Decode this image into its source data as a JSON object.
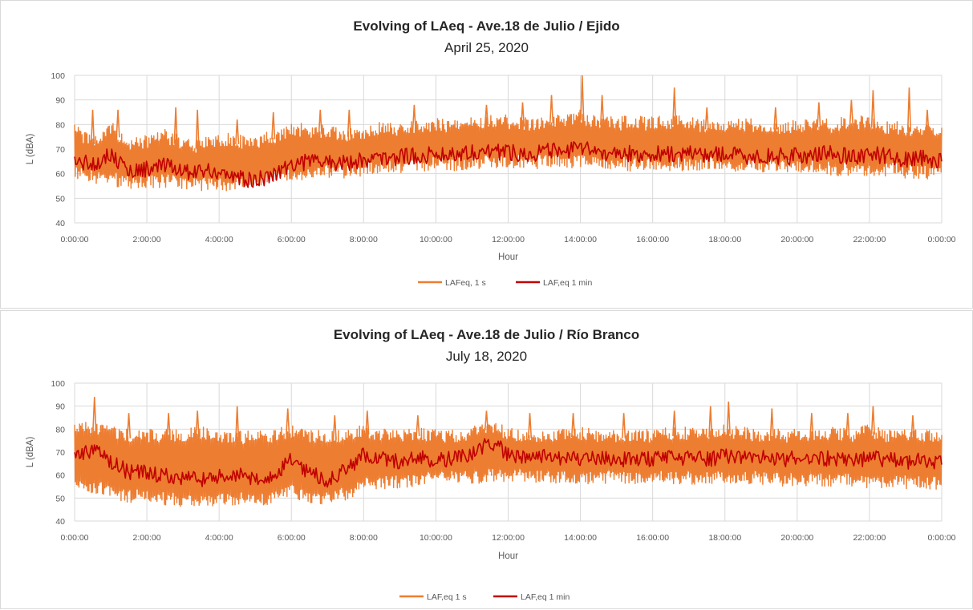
{
  "chart_data": [
    {
      "type": "line",
      "title": "Evolving of LAeq - Ave.18 de Julio / Ejido",
      "subtitle": "April 25, 2020",
      "xlabel": "Hour",
      "ylabel": "L (dBA)",
      "ylim": [
        40,
        100
      ],
      "yticks": [
        40,
        50,
        60,
        70,
        80,
        90,
        100
      ],
      "xticks": [
        "0:00:00",
        "2:00:00",
        "4:00:00",
        "6:00:00",
        "8:00:00",
        "10:00:00",
        "12:00:00",
        "14:00:00",
        "16:00:00",
        "18:00:00",
        "20:00:00",
        "22:00:00",
        "0:00:00"
      ],
      "grid": true,
      "legend_position": "bottom",
      "series": [
        {
          "name": "LAFeq, 1 s",
          "color": "#ED7D31",
          "hours": [
            0,
            0.5,
            1,
            1.5,
            2,
            2.5,
            3,
            3.5,
            4,
            4.5,
            5,
            5.5,
            6,
            6.5,
            7,
            7.5,
            8,
            8.5,
            9,
            9.5,
            10,
            10.5,
            11,
            11.5,
            12,
            12.5,
            13,
            13.5,
            14,
            14.5,
            15,
            15.5,
            16,
            16.5,
            17,
            17.5,
            18,
            18.5,
            19,
            19.5,
            20,
            20.5,
            21,
            21.5,
            22,
            22.5,
            23,
            23.5,
            24
          ],
          "upper": [
            80,
            76,
            82,
            74,
            76,
            78,
            75,
            74,
            77,
            76,
            75,
            78,
            81,
            80,
            80,
            79,
            79,
            82,
            81,
            82,
            83,
            82,
            83,
            84,
            84,
            83,
            84,
            85,
            86,
            84,
            83,
            84,
            83,
            84,
            83,
            82,
            82,
            83,
            82,
            82,
            82,
            83,
            82,
            84,
            83,
            82,
            81,
            81,
            80
          ],
          "lower": [
            57,
            56,
            55,
            54,
            54,
            54,
            53,
            53,
            53,
            53,
            54,
            56,
            57,
            57,
            58,
            58,
            59,
            60,
            60,
            61,
            61,
            61,
            62,
            62,
            62,
            62,
            62,
            62,
            62,
            62,
            61,
            61,
            61,
            61,
            61,
            61,
            61,
            60,
            60,
            60,
            60,
            60,
            59,
            59,
            59,
            59,
            58,
            58,
            57
          ],
          "spikes": [
            [
              0.5,
              86
            ],
            [
              1.2,
              86
            ],
            [
              2.8,
              87
            ],
            [
              3.4,
              86
            ],
            [
              4.5,
              82
            ],
            [
              5.5,
              85
            ],
            [
              6.8,
              86
            ],
            [
              7.6,
              86
            ],
            [
              9.4,
              88
            ],
            [
              11.4,
              88
            ],
            [
              12.4,
              89
            ],
            [
              13.2,
              92
            ],
            [
              14.05,
              100
            ],
            [
              14.6,
              92
            ],
            [
              16.6,
              95
            ],
            [
              17.5,
              87
            ],
            [
              19.4,
              87
            ],
            [
              20.6,
              89
            ],
            [
              21.5,
              90
            ],
            [
              22.1,
              94
            ],
            [
              23.1,
              95
            ],
            [
              23.6,
              86
            ]
          ]
        },
        {
          "name": "LAF,eq 1 min",
          "color": "#C00000",
          "hours": [
            0,
            0.5,
            1,
            1.5,
            2,
            2.5,
            3,
            3.5,
            4,
            4.5,
            5,
            5.5,
            6,
            6.5,
            7,
            7.5,
            8,
            8.5,
            9,
            9.5,
            10,
            10.5,
            11,
            11.5,
            12,
            12.5,
            13,
            13.5,
            14,
            14.5,
            15,
            15.5,
            16,
            16.5,
            17,
            17.5,
            18,
            18.5,
            19,
            19.5,
            20,
            20.5,
            21,
            21.5,
            22,
            22.5,
            23,
            23.5,
            24
          ],
          "values": [
            65,
            64,
            68,
            61,
            62,
            63,
            61,
            61,
            61,
            58,
            57,
            60,
            64,
            65,
            65,
            64,
            66,
            66,
            67,
            67,
            68,
            68,
            69,
            69,
            69,
            68,
            69,
            69,
            70,
            69,
            68,
            68,
            68,
            68,
            68,
            68,
            68,
            67,
            67,
            67,
            67,
            68,
            68,
            67,
            68,
            67,
            66,
            66,
            65
          ]
        }
      ]
    },
    {
      "type": "line",
      "title": "Evolving of LAeq - Ave.18 de Julio / Río Branco",
      "subtitle": "July 18, 2020",
      "xlabel": "Hour",
      "ylabel": "L (dBA)",
      "ylim": [
        40,
        100
      ],
      "yticks": [
        40,
        50,
        60,
        70,
        80,
        90,
        100
      ],
      "xticks": [
        "0:00:00",
        "2:00:00",
        "4:00:00",
        "6:00:00",
        "8:00:00",
        "10:00:00",
        "12:00:00",
        "14:00:00",
        "16:00:00",
        "18:00:00",
        "20:00:00",
        "22:00:00",
        "0:00:00"
      ],
      "grid": true,
      "legend_position": "bottom",
      "series": [
        {
          "name": "LAF,eq 1 s",
          "color": "#ED7D31",
          "hours": [
            0,
            0.5,
            1,
            1.5,
            2,
            2.5,
            3,
            3.5,
            4,
            4.5,
            5,
            5.5,
            6,
            6.5,
            7,
            7.5,
            8,
            8.5,
            9,
            9.5,
            10,
            10.5,
            11,
            11.5,
            12,
            12.5,
            13,
            13.5,
            14,
            14.5,
            15,
            15.5,
            16,
            16.5,
            17,
            17.5,
            18,
            18.5,
            19,
            19.5,
            20,
            20.5,
            21,
            21.5,
            22,
            22.5,
            23,
            23.5,
            24
          ],
          "upper": [
            82,
            84,
            82,
            80,
            80,
            80,
            80,
            81,
            80,
            79,
            80,
            80,
            82,
            80,
            79,
            80,
            82,
            80,
            80,
            81,
            80,
            80,
            81,
            84,
            81,
            80,
            80,
            80,
            81,
            80,
            80,
            80,
            80,
            81,
            81,
            80,
            82,
            81,
            80,
            80,
            80,
            80,
            81,
            80,
            82,
            80,
            80,
            80,
            80
          ],
          "lower": [
            54,
            52,
            50,
            48,
            48,
            47,
            46,
            46,
            46,
            47,
            47,
            47,
            50,
            48,
            47,
            49,
            53,
            54,
            54,
            55,
            56,
            56,
            56,
            57,
            57,
            57,
            56,
            56,
            56,
            56,
            56,
            56,
            56,
            56,
            56,
            56,
            56,
            56,
            56,
            55,
            55,
            55,
            55,
            55,
            54,
            54,
            54,
            54,
            53
          ],
          "spikes": [
            [
              0.55,
              94
            ],
            [
              1.5,
              87
            ],
            [
              2.6,
              87
            ],
            [
              3.4,
              88
            ],
            [
              4.5,
              90
            ],
            [
              5.9,
              89
            ],
            [
              7.2,
              86
            ],
            [
              8.1,
              88
            ],
            [
              9.5,
              86
            ],
            [
              11.4,
              88
            ],
            [
              12.6,
              87
            ],
            [
              13.8,
              87
            ],
            [
              15.2,
              87
            ],
            [
              16.6,
              88
            ],
            [
              17.6,
              90
            ],
            [
              18.1,
              92
            ],
            [
              19.3,
              89
            ],
            [
              20.4,
              87
            ],
            [
              21.4,
              87
            ],
            [
              22.1,
              90
            ],
            [
              23.2,
              86
            ]
          ]
        },
        {
          "name": "LAF,eq 1 min",
          "color": "#C00000",
          "hours": [
            0,
            0.5,
            1,
            1.5,
            2,
            2.5,
            3,
            3.5,
            4,
            4.5,
            5,
            5.5,
            6,
            6.5,
            7,
            7.5,
            8,
            8.5,
            9,
            9.5,
            10,
            10.5,
            11,
            11.5,
            12,
            12.5,
            13,
            13.5,
            14,
            14.5,
            15,
            15.5,
            16,
            16.5,
            17,
            17.5,
            18,
            18.5,
            19,
            19.5,
            20,
            20.5,
            21,
            21.5,
            22,
            22.5,
            23,
            23.5,
            24
          ],
          "values": [
            68,
            71,
            66,
            61,
            61,
            60,
            59,
            58,
            59,
            60,
            59,
            58,
            68,
            61,
            58,
            62,
            69,
            67,
            66,
            67,
            67,
            67,
            69,
            75,
            69,
            68,
            68,
            67,
            67,
            67,
            67,
            67,
            67,
            68,
            67,
            67,
            68,
            68,
            68,
            67,
            67,
            67,
            67,
            67,
            67,
            67,
            66,
            66,
            65
          ]
        }
      ]
    }
  ]
}
